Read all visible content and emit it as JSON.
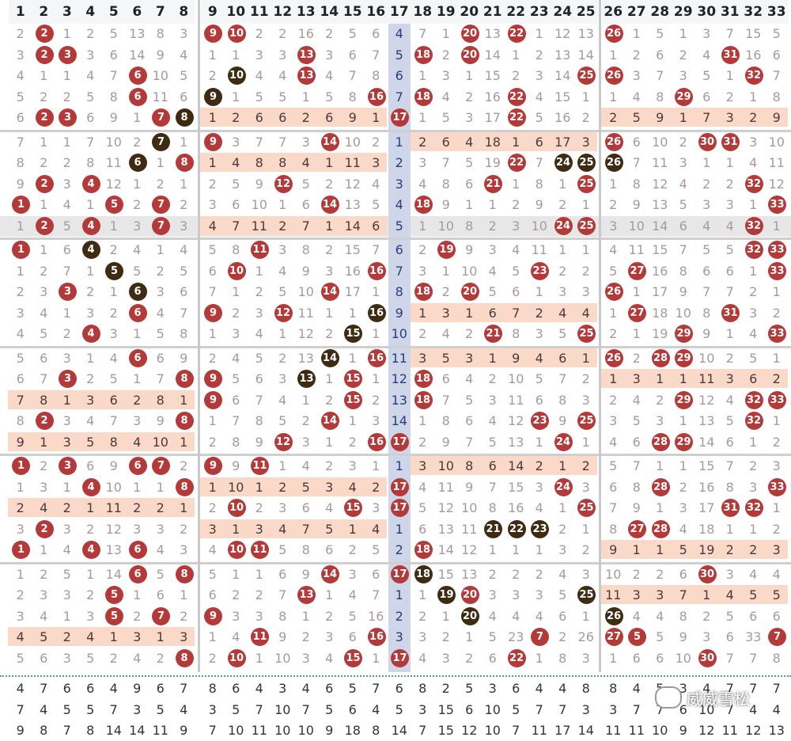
{
  "headers": [
    "1",
    "2",
    "3",
    "4",
    "5",
    "6",
    "7",
    "8",
    "9",
    "10",
    "11",
    "12",
    "13",
    "14",
    "15",
    "16",
    "17",
    "18",
    "19",
    "20",
    "21",
    "22",
    "23",
    "24",
    "25",
    "26",
    "27",
    "28",
    "29",
    "30",
    "31",
    "32",
    "33"
  ],
  "rows": [
    [
      "2",
      "2",
      "1",
      "2",
      "5",
      "13",
      "8",
      "3",
      "9",
      "10",
      "2",
      "2",
      "16",
      "2",
      "5",
      "6",
      "4",
      "7",
      "1",
      "20",
      "13",
      "22",
      "1",
      "12",
      "13",
      "26",
      "1",
      "5",
      "1",
      "3",
      "7",
      "15",
      "5"
    ],
    [
      "3",
      "2",
      "3",
      "3",
      "6",
      "14",
      "9",
      "4",
      "1",
      "1",
      "3",
      "3",
      "13",
      "3",
      "6",
      "7",
      "5",
      "18",
      "2",
      "20",
      "14",
      "1",
      "2",
      "13",
      "14",
      "1",
      "2",
      "6",
      "2",
      "4",
      "31",
      "16",
      "6"
    ],
    [
      "4",
      "1",
      "1",
      "4",
      "7",
      "6",
      "10",
      "5",
      "2",
      "10",
      "4",
      "4",
      "13",
      "4",
      "7",
      "8",
      "6",
      "1",
      "3",
      "1",
      "15",
      "2",
      "3",
      "14",
      "25",
      "26",
      "3",
      "7",
      "3",
      "5",
      "1",
      "32",
      "7"
    ],
    [
      "5",
      "2",
      "2",
      "5",
      "8",
      "6",
      "11",
      "6",
      "9",
      "1",
      "5",
      "5",
      "1",
      "5",
      "8",
      "16",
      "7",
      "18",
      "4",
      "2",
      "16",
      "22",
      "4",
      "15",
      "1",
      "1",
      "4",
      "8",
      "29",
      "6",
      "2",
      "1",
      "8"
    ],
    [
      "6",
      "2",
      "3",
      "6",
      "9",
      "1",
      "7",
      "8",
      "1",
      "2",
      "6",
      "6",
      "2",
      "6",
      "9",
      "1",
      "17",
      "1",
      "5",
      "3",
      "17",
      "22",
      "5",
      "16",
      "2",
      "2",
      "5",
      "9",
      "1",
      "7",
      "3",
      "2",
      "9"
    ],
    [
      "7",
      "1",
      "1",
      "7",
      "10",
      "2",
      "7",
      "1",
      "9",
      "3",
      "7",
      "7",
      "3",
      "14",
      "10",
      "2",
      "1",
      "2",
      "6",
      "4",
      "18",
      "1",
      "6",
      "17",
      "3",
      "26",
      "6",
      "10",
      "2",
      "30",
      "31",
      "3",
      "10"
    ],
    [
      "8",
      "2",
      "2",
      "8",
      "11",
      "6",
      "1",
      "8",
      "1",
      "4",
      "8",
      "8",
      "4",
      "1",
      "11",
      "3",
      "2",
      "3",
      "7",
      "5",
      "19",
      "22",
      "7",
      "24",
      "25",
      "26",
      "7",
      "11",
      "3",
      "1",
      "1",
      "4",
      "11"
    ],
    [
      "9",
      "2",
      "3",
      "4",
      "12",
      "1",
      "2",
      "1",
      "2",
      "5",
      "9",
      "12",
      "5",
      "2",
      "12",
      "4",
      "3",
      "4",
      "8",
      "6",
      "21",
      "1",
      "8",
      "1",
      "25",
      "1",
      "8",
      "12",
      "4",
      "2",
      "2",
      "32",
      "12"
    ],
    [
      "1",
      "1",
      "4",
      "1",
      "5",
      "2",
      "7",
      "2",
      "3",
      "6",
      "10",
      "1",
      "6",
      "14",
      "13",
      "5",
      "4",
      "18",
      "9",
      "1",
      "1",
      "2",
      "9",
      "2",
      "1",
      "2",
      "9",
      "13",
      "5",
      "3",
      "3",
      "1",
      "33"
    ],
    [
      "1",
      "2",
      "5",
      "4",
      "1",
      "3",
      "7",
      "3",
      "4",
      "7",
      "11",
      "2",
      "7",
      "1",
      "14",
      "6",
      "5",
      "1",
      "10",
      "8",
      "2",
      "3",
      "10",
      "24",
      "25",
      "3",
      "10",
      "14",
      "6",
      "4",
      "4",
      "32",
      "1"
    ],
    [
      "1",
      "1",
      "6",
      "4",
      "2",
      "4",
      "1",
      "4",
      "5",
      "8",
      "11",
      "3",
      "8",
      "2",
      "15",
      "7",
      "6",
      "2",
      "19",
      "9",
      "3",
      "4",
      "11",
      "1",
      "1",
      "4",
      "11",
      "15",
      "7",
      "5",
      "5",
      "32",
      "33"
    ],
    [
      "1",
      "2",
      "7",
      "1",
      "5",
      "5",
      "2",
      "5",
      "6",
      "10",
      "1",
      "4",
      "9",
      "3",
      "16",
      "16",
      "7",
      "3",
      "1",
      "10",
      "4",
      "5",
      "23",
      "2",
      "2",
      "5",
      "27",
      "16",
      "8",
      "6",
      "6",
      "1",
      "33"
    ],
    [
      "2",
      "3",
      "3",
      "2",
      "1",
      "6",
      "3",
      "6",
      "7",
      "1",
      "2",
      "5",
      "10",
      "14",
      "17",
      "1",
      "8",
      "18",
      "2",
      "20",
      "5",
      "6",
      "1",
      "3",
      "3",
      "26",
      "1",
      "17",
      "9",
      "7",
      "7",
      "2",
      "1"
    ],
    [
      "3",
      "4",
      "1",
      "3",
      "2",
      "6",
      "4",
      "7",
      "9",
      "2",
      "3",
      "12",
      "11",
      "1",
      "1",
      "16",
      "9",
      "1",
      "3",
      "1",
      "6",
      "7",
      "2",
      "4",
      "4",
      "1",
      "27",
      "18",
      "10",
      "8",
      "31",
      "3",
      "2"
    ],
    [
      "4",
      "5",
      "2",
      "4",
      "3",
      "1",
      "5",
      "8",
      "1",
      "3",
      "4",
      "1",
      "12",
      "2",
      "15",
      "1",
      "10",
      "2",
      "4",
      "2",
      "21",
      "8",
      "3",
      "5",
      "25",
      "2",
      "1",
      "19",
      "29",
      "9",
      "1",
      "4",
      "33"
    ],
    [
      "5",
      "6",
      "3",
      "1",
      "4",
      "6",
      "6",
      "9",
      "2",
      "4",
      "5",
      "2",
      "13",
      "14",
      "1",
      "16",
      "11",
      "3",
      "5",
      "3",
      "1",
      "9",
      "4",
      "6",
      "1",
      "26",
      "2",
      "28",
      "29",
      "10",
      "2",
      "5",
      "1"
    ],
    [
      "6",
      "7",
      "3",
      "2",
      "5",
      "1",
      "7",
      "8",
      "9",
      "5",
      "6",
      "3",
      "13",
      "1",
      "15",
      "1",
      "12",
      "18",
      "6",
      "4",
      "2",
      "10",
      "5",
      "7",
      "2",
      "1",
      "3",
      "1",
      "1",
      "11",
      "3",
      "6",
      "2"
    ],
    [
      "7",
      "8",
      "1",
      "3",
      "6",
      "2",
      "8",
      "1",
      "9",
      "6",
      "7",
      "4",
      "1",
      "2",
      "15",
      "2",
      "13",
      "18",
      "7",
      "5",
      "3",
      "11",
      "6",
      "8",
      "3",
      "2",
      "4",
      "2",
      "29",
      "12",
      "4",
      "32",
      "33"
    ],
    [
      "8",
      "2",
      "3",
      "4",
      "7",
      "3",
      "9",
      "8",
      "1",
      "7",
      "8",
      "5",
      "2",
      "14",
      "1",
      "3",
      "14",
      "1",
      "8",
      "6",
      "4",
      "12",
      "23",
      "9",
      "25",
      "3",
      "5",
      "3",
      "1",
      "13",
      "5",
      "32",
      "1"
    ],
    [
      "9",
      "1",
      "3",
      "5",
      "8",
      "4",
      "10",
      "1",
      "2",
      "8",
      "9",
      "12",
      "3",
      "1",
      "2",
      "16",
      "17",
      "2",
      "9",
      "7",
      "5",
      "13",
      "1",
      "24",
      "1",
      "4",
      "6",
      "28",
      "29",
      "14",
      "6",
      "1",
      "2"
    ],
    [
      "1",
      "2",
      "3",
      "6",
      "9",
      "6",
      "7",
      "2",
      "9",
      "9",
      "11",
      "1",
      "4",
      "2",
      "3",
      "1",
      "1",
      "3",
      "10",
      "8",
      "6",
      "14",
      "2",
      "1",
      "2",
      "5",
      "7",
      "1",
      "1",
      "15",
      "7",
      "2",
      "3"
    ],
    [
      "1",
      "3",
      "1",
      "4",
      "10",
      "1",
      "1",
      "8",
      "1",
      "10",
      "1",
      "2",
      "5",
      "3",
      "4",
      "2",
      "17",
      "4",
      "11",
      "9",
      "7",
      "15",
      "3",
      "24",
      "3",
      "6",
      "8",
      "28",
      "2",
      "16",
      "8",
      "3",
      "33"
    ],
    [
      "2",
      "4",
      "2",
      "1",
      "11",
      "2",
      "2",
      "1",
      "2",
      "10",
      "2",
      "3",
      "6",
      "4",
      "15",
      "3",
      "17",
      "5",
      "12",
      "10",
      "8",
      "16",
      "4",
      "1",
      "25",
      "7",
      "9",
      "1",
      "3",
      "17",
      "31",
      "32",
      "1"
    ],
    [
      "3",
      "2",
      "3",
      "2",
      "12",
      "3",
      "3",
      "2",
      "3",
      "1",
      "3",
      "4",
      "7",
      "5",
      "1",
      "4",
      "1",
      "6",
      "13",
      "11",
      "21",
      "22",
      "23",
      "2",
      "1",
      "8",
      "27",
      "28",
      "4",
      "18",
      "1",
      "1",
      "2"
    ],
    [
      "1",
      "1",
      "4",
      "4",
      "13",
      "6",
      "4",
      "3",
      "4",
      "10",
      "11",
      "5",
      "8",
      "6",
      "2",
      "5",
      "2",
      "18",
      "14",
      "12",
      "1",
      "1",
      "1",
      "3",
      "2",
      "9",
      "1",
      "1",
      "5",
      "19",
      "2",
      "2",
      "3"
    ],
    [
      "1",
      "2",
      "5",
      "1",
      "14",
      "6",
      "5",
      "8",
      "5",
      "1",
      "1",
      "6",
      "9",
      "14",
      "3",
      "6",
      "17",
      "18",
      "15",
      "13",
      "2",
      "2",
      "2",
      "4",
      "3",
      "10",
      "2",
      "2",
      "6",
      "30",
      "3",
      "4",
      "4"
    ],
    [
      "2",
      "3",
      "3",
      "2",
      "5",
      "1",
      "6",
      "1",
      "6",
      "2",
      "2",
      "7",
      "13",
      "1",
      "4",
      "7",
      "1",
      "1",
      "19",
      "20",
      "3",
      "3",
      "3",
      "5",
      "25",
      "11",
      "3",
      "3",
      "7",
      "1",
      "4",
      "5",
      "5"
    ],
    [
      "3",
      "4",
      "1",
      "3",
      "5",
      "2",
      "7",
      "2",
      "9",
      "3",
      "3",
      "8",
      "1",
      "2",
      "5",
      "16",
      "2",
      "2",
      "1",
      "20",
      "4",
      "4",
      "4",
      "6",
      "1",
      "26",
      "4",
      "4",
      "8",
      "2",
      "5",
      "6",
      "6"
    ],
    [
      "4",
      "5",
      "2",
      "4",
      "1",
      "3",
      "1",
      "3",
      "1",
      "4",
      "11",
      "9",
      "2",
      "3",
      "6",
      "16",
      "3",
      "3",
      "2",
      "1",
      "5",
      "23",
      "7",
      "2",
      "26",
      "27",
      "5",
      "5",
      "9",
      "3",
      "6",
      "33",
      "7"
    ],
    [
      "5",
      "6",
      "3",
      "5",
      "2",
      "4",
      "2",
      "8",
      "2",
      "10",
      "1",
      "10",
      "3",
      "4",
      "15",
      "1",
      "17",
      "4",
      "3",
      "2",
      "6",
      "22",
      "1",
      "8",
      "3",
      "1",
      "6",
      "6",
      "10",
      "30",
      "7",
      "7",
      "8"
    ]
  ],
  "footer_rows": [
    [
      "4",
      "7",
      "6",
      "6",
      "4",
      "9",
      "6",
      "7",
      "8",
      "6",
      "4",
      "3",
      "4",
      "6",
      "5",
      "7",
      "6",
      "8",
      "2",
      "5",
      "3",
      "6",
      "4",
      "4",
      "8",
      "8",
      "4",
      "5",
      "3",
      "4",
      "7",
      "7",
      "7"
    ],
    [
      "7",
      "4",
      "5",
      "5",
      "7",
      "3",
      "5",
      "4",
      "3",
      "5",
      "7",
      "10",
      "7",
      "5",
      "6",
      "4",
      "5",
      "3",
      "15",
      "6",
      "10",
      "5",
      "7",
      "7",
      "3",
      "3",
      "7",
      "7",
      "6",
      "10",
      "7",
      "4",
      "4"
    ],
    [
      "9",
      "8",
      "7",
      "8",
      "14",
      "14",
      "11",
      "9",
      "7",
      "10",
      "11",
      "10",
      "10",
      "9",
      "18",
      "8",
      "14",
      "7",
      "15",
      "12",
      "10",
      "7",
      "11",
      "17",
      "14",
      "11",
      "11",
      "10",
      "9",
      "12",
      "11",
      "12",
      "13"
    ]
  ],
  "watermark": "威威雪松",
  "colors": {
    "red_ball": "#b43a3a",
    "brown_ball": "#3f2a12",
    "highlight": "#fbd9c9",
    "col17": "#cfd6e9"
  }
}
